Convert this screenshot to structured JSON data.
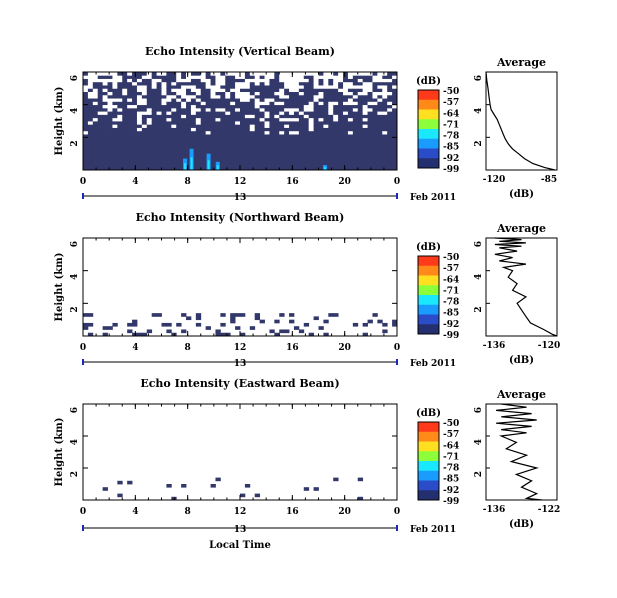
{
  "figure": {
    "date_label": "Feb 2011",
    "day_label": "13",
    "xlabel": "Local Time"
  },
  "colorbar": {
    "unit": "(dB)",
    "labels": [
      "-50",
      "-57",
      "-64",
      "-71",
      "-78",
      "-85",
      "-92",
      "-99"
    ],
    "colors": [
      "#ff3a1a",
      "#ff8a1a",
      "#ffe020",
      "#8cff3a",
      "#1ae8ff",
      "#1a9cff",
      "#2a4cc8",
      "#232f6e"
    ]
  },
  "chart_data": [
    {
      "type": "heatmap",
      "title": "Echo Intensity (Vertical Beam)",
      "ylabel": "Height (km)",
      "xlim": [
        0,
        24
      ],
      "ylim": [
        0,
        6
      ],
      "xticks": [
        "0",
        "4",
        "8",
        "12",
        "16",
        "20",
        "0"
      ],
      "yticks": [
        "6",
        "4",
        "2"
      ],
      "clim": [
        -99,
        -50
      ],
      "colors": {
        "background": "#33386a",
        "high": "#1ae8ff",
        "mid": "#1a9cff",
        "nodata": "#ffffff"
      },
      "profile": {
        "title": "Average",
        "xlabel": "(dB)",
        "xlim": [
          -120,
          -85
        ],
        "xticks": [
          "-120",
          "-85"
        ],
        "yticks": [
          "6",
          "4",
          "2"
        ],
        "points": [
          [
            -120,
            6
          ],
          [
            -119.6,
            5.5
          ],
          [
            -119,
            5
          ],
          [
            -118.5,
            4.5
          ],
          [
            -118,
            4
          ],
          [
            -117.5,
            3.7
          ],
          [
            -116,
            3.4
          ],
          [
            -114.5,
            3.1
          ],
          [
            -113.5,
            2.8
          ],
          [
            -112.5,
            2.5
          ],
          [
            -111.5,
            2.2
          ],
          [
            -110.5,
            1.9
          ],
          [
            -109,
            1.6
          ],
          [
            -107,
            1.3
          ],
          [
            -104,
            1.0
          ],
          [
            -101,
            0.7
          ],
          [
            -97,
            0.4
          ],
          [
            -91,
            0.15
          ],
          [
            -86,
            0
          ]
        ]
      }
    },
    {
      "type": "heatmap",
      "title": "Echo Intensity (Northward Beam)",
      "ylabel": "Height (km)",
      "xlim": [
        0,
        24
      ],
      "ylim": [
        0,
        6
      ],
      "xticks": [
        "0",
        "4",
        "8",
        "12",
        "16",
        "20",
        "0"
      ],
      "yticks": [
        "6",
        "4",
        "2"
      ],
      "clim": [
        -99,
        -50
      ],
      "colors": {
        "background": "#33386a",
        "high": "#1ae8ff",
        "mid": "#1a9cff",
        "nodata": "#ffffff"
      },
      "profile": {
        "title": "Average",
        "xlabel": "(dB)",
        "xlim": [
          -136,
          -120
        ],
        "xticks": [
          "-136",
          "-120"
        ],
        "yticks": [
          "6",
          "4",
          "2"
        ],
        "points": [
          [
            -134,
            6
          ],
          [
            -128,
            5.9
          ],
          [
            -133,
            5.8
          ],
          [
            -127,
            5.7
          ],
          [
            -134,
            5.6
          ],
          [
            -128,
            5.5
          ],
          [
            -133,
            5.4
          ],
          [
            -129,
            5.2
          ],
          [
            -134,
            5.0
          ],
          [
            -130,
            4.8
          ],
          [
            -133,
            4.6
          ],
          [
            -127,
            4.4
          ],
          [
            -132,
            4.2
          ],
          [
            -130,
            4.0
          ],
          [
            -131,
            3.6
          ],
          [
            -129,
            3.2
          ],
          [
            -130,
            2.8
          ],
          [
            -127,
            2.4
          ],
          [
            -129,
            2.0
          ],
          [
            -128,
            1.6
          ],
          [
            -127,
            1.2
          ],
          [
            -126,
            0.8
          ],
          [
            -123,
            0.4
          ],
          [
            -121,
            0.1
          ],
          [
            -120,
            0
          ]
        ]
      }
    },
    {
      "type": "heatmap",
      "title": "Echo Intensity (Eastward Beam)",
      "ylabel": "Height (km)",
      "xlim": [
        0,
        24
      ],
      "ylim": [
        0,
        6
      ],
      "xticks": [
        "0",
        "4",
        "8",
        "12",
        "16",
        "20",
        "0"
      ],
      "yticks": [
        "6",
        "4",
        "2"
      ],
      "clim": [
        -99,
        -50
      ],
      "colors": {
        "background": "#33386a",
        "high": "#1ae8ff",
        "mid": "#1a9cff",
        "nodata": "#ffffff"
      },
      "profile": {
        "title": "Average",
        "xlabel": "(dB)",
        "xlim": [
          -136,
          -122
        ],
        "xticks": [
          "-136",
          "-122"
        ],
        "yticks": [
          "6",
          "4",
          "2"
        ],
        "points": [
          [
            -133,
            6
          ],
          [
            -128,
            5.8
          ],
          [
            -134,
            5.6
          ],
          [
            -127,
            5.4
          ],
          [
            -133,
            5.2
          ],
          [
            -126,
            5.0
          ],
          [
            -134,
            4.8
          ],
          [
            -127,
            4.6
          ],
          [
            -133,
            4.4
          ],
          [
            -128,
            4.2
          ],
          [
            -133,
            4.0
          ],
          [
            -130,
            3.6
          ],
          [
            -132,
            3.2
          ],
          [
            -128,
            2.8
          ],
          [
            -131,
            2.4
          ],
          [
            -126,
            2.0
          ],
          [
            -130,
            1.6
          ],
          [
            -127,
            1.2
          ],
          [
            -129,
            0.8
          ],
          [
            -126,
            0.4
          ],
          [
            -128,
            0.1
          ],
          [
            -125,
            0
          ]
        ]
      }
    }
  ]
}
